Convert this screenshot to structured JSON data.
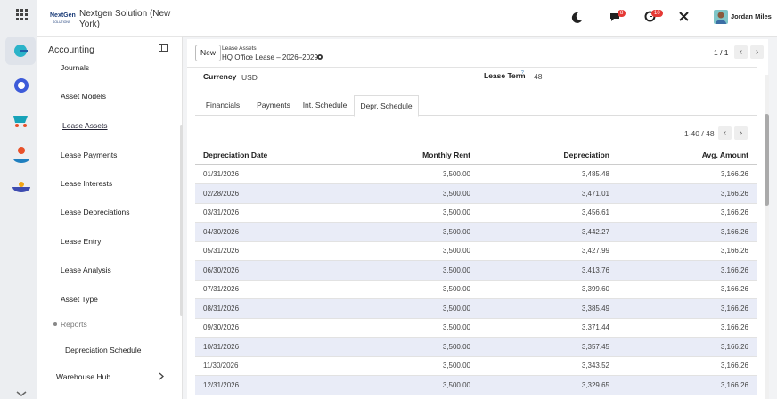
{
  "sidebar": {
    "logo": "NextGen",
    "logo_sub": "SOLUTIONS",
    "company": "Nextgen Solution (New York)",
    "section": "Accounting",
    "menu": [
      "Journals",
      "Asset Models",
      "Lease Assets",
      "Lease Payments",
      "Lease Interests",
      "Lease Depreciations",
      "Lease Entry",
      "Lease Analysis",
      "Asset Type"
    ],
    "active_menu": 2,
    "reports": "Reports",
    "report_items": [
      "Depreciation Schedule"
    ],
    "more": "Warehouse Hub"
  },
  "topbar": {
    "chat_badge": "8",
    "activity_badge": "10",
    "user": "Jordan Miles"
  },
  "breadcrumb": {
    "new_button": "New",
    "parent": "Lease Assets",
    "record": "HQ Office Lease – 2026–2029",
    "pager": "1 / 1"
  },
  "form": {
    "currency_label": "Currency",
    "currency": "USD",
    "term_label": "Lease Term",
    "term_help": "?",
    "term": "48"
  },
  "tabs": [
    "Financials",
    "Payments",
    "Int. Schedule",
    "Depr. Schedule"
  ],
  "active_tab": 3,
  "table": {
    "pager": "1-40 / 48",
    "columns": [
      "Depreciation Date",
      "Monthly Rent",
      "Depreciation",
      "Avg. Amount"
    ],
    "rows": [
      [
        "01/31/2026",
        "3,500.00",
        "3,485.48",
        "3,166.26"
      ],
      [
        "02/28/2026",
        "3,500.00",
        "3,471.01",
        "3,166.26"
      ],
      [
        "03/31/2026",
        "3,500.00",
        "3,456.61",
        "3,166.26"
      ],
      [
        "04/30/2026",
        "3,500.00",
        "3,442.27",
        "3,166.26"
      ],
      [
        "05/31/2026",
        "3,500.00",
        "3,427.99",
        "3,166.26"
      ],
      [
        "06/30/2026",
        "3,500.00",
        "3,413.76",
        "3,166.26"
      ],
      [
        "07/31/2026",
        "3,500.00",
        "3,399.60",
        "3,166.26"
      ],
      [
        "08/31/2026",
        "3,500.00",
        "3,385.49",
        "3,166.26"
      ],
      [
        "09/30/2026",
        "3,500.00",
        "3,371.44",
        "3,166.26"
      ],
      [
        "10/31/2026",
        "3,500.00",
        "3,357.45",
        "3,166.26"
      ],
      [
        "11/30/2026",
        "3,500.00",
        "3,343.52",
        "3,166.26"
      ],
      [
        "12/31/2026",
        "3,500.00",
        "3,329.65",
        "3,166.26"
      ]
    ]
  }
}
